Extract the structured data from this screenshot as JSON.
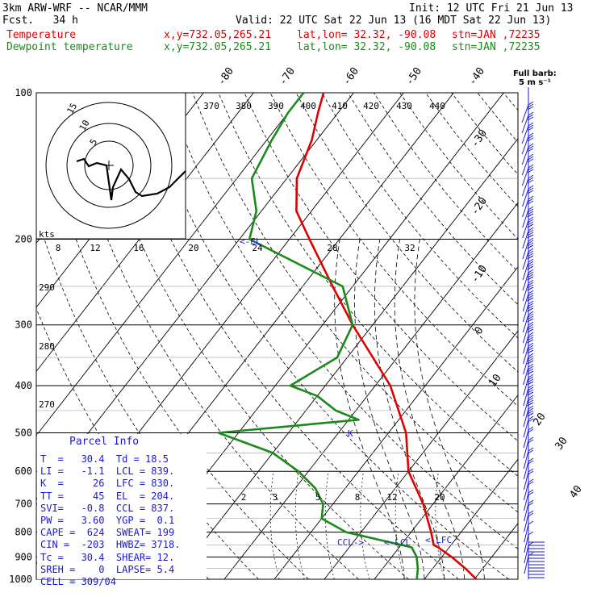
{
  "header": {
    "model": "3km ARW-WRF -- NCAR/MMM",
    "init": "Init: 12 UTC Fri 21 Jun 13",
    "fcst": "Fcst.   34 h",
    "valid": "Valid: 22 UTC Sat 22 Jun 13 (16 MDT Sat 22 Jun 13)",
    "temp_label": "Temperature",
    "dew_label": "Dewpoint temperature",
    "xy": "x,y=732.05,265.21",
    "latlon": "lat,lon= 32.32, -90.08",
    "stn": "stn=JAN ,72235",
    "colors": {
      "temperature": "#e00000",
      "dewpoint": "#1a8a1a",
      "info": "#1a1acc"
    }
  },
  "barb_legend": {
    "line1": "Full barb:",
    "line2": "5 m s⁻¹"
  },
  "chart_data": {
    "type": "line",
    "title": "",
    "pressure_levels": [
      "100",
      "200",
      "300",
      "400",
      "500",
      "600",
      "700",
      "800",
      "900",
      "1000"
    ],
    "skewed_temp_labels": [
      "-80",
      "-70",
      "-60",
      "-50",
      "-40",
      "-30",
      "-20",
      "-10",
      "0",
      "10",
      "20",
      "30",
      "40"
    ],
    "theta_labels": [
      "370",
      "380",
      "390",
      "400",
      "410",
      "420",
      "430",
      "440"
    ],
    "theta_left_labels": [
      "290",
      "280",
      "270"
    ],
    "mixing_ratio_labels": [
      "2",
      "3",
      "5",
      "8",
      "12",
      "20"
    ],
    "series": [
      {
        "name": "Temperature",
        "color": "#e00000",
        "p": [
          1000,
          950,
          900,
          860,
          850,
          800,
          700,
          600,
          500,
          400,
          300,
          250,
          200,
          175,
          150,
          125,
          110,
          100
        ],
        "t": [
          30.4,
          26.5,
          22.0,
          17.8,
          16.5,
          14.0,
          8.0,
          0.0,
          -6.5,
          -17.0,
          -34.0,
          -44.0,
          -56.0,
          -63.0,
          -68.0,
          -71.0,
          -74.0,
          -76.0
        ]
      },
      {
        "name": "Dewpoint temperature",
        "color": "#1a8a1a",
        "p": [
          1000,
          950,
          900,
          860,
          850,
          800,
          750,
          700,
          650,
          600,
          550,
          500,
          470,
          450,
          420,
          400,
          350,
          300,
          250,
          200,
          175,
          150,
          125,
          110,
          100
        ],
        "t": [
          18.5,
          17.0,
          15.0,
          12.5,
          10.0,
          -3.0,
          -10.0,
          -12.0,
          -16.0,
          -22.0,
          -30.0,
          -44.0,
          -18.0,
          -24.0,
          -30.0,
          -37.0,
          -32.0,
          -34.0,
          -42.0,
          -68.0,
          -71.0,
          -77.0,
          -79.0,
          -80.0,
          -80.0
        ]
      }
    ],
    "annotations": [
      "CCL->",
      "<-LCL",
      "<-LFC",
      "<-EL",
      "K"
    ],
    "hodograph": {
      "units": "kts",
      "ring_labels": [
        "5",
        "10",
        "15"
      ],
      "speed_labels": [
        "8",
        "12",
        "16",
        "20",
        "24",
        "28",
        "32"
      ]
    }
  },
  "parcel_info": {
    "title": "Parcel Info",
    "rows": [
      "T  =   30.4  Td = 18.5",
      "LI =   -1.1  LCL = 839.",
      "K  =     26  LFC = 830.",
      "TT =     45  EL  = 204.",
      "SVI=   -0.8  CCL = 837.",
      "PW =   3.60  YGP =  0.1",
      "CAPE =  624  SWEAT= 199",
      "CIN =  -203  HWBZ= 3718.",
      "Tc =   30.4  SHEAR= 12.",
      "SREH =    0  LAPSE= 5.4",
      "CELL = 309/04"
    ]
  }
}
